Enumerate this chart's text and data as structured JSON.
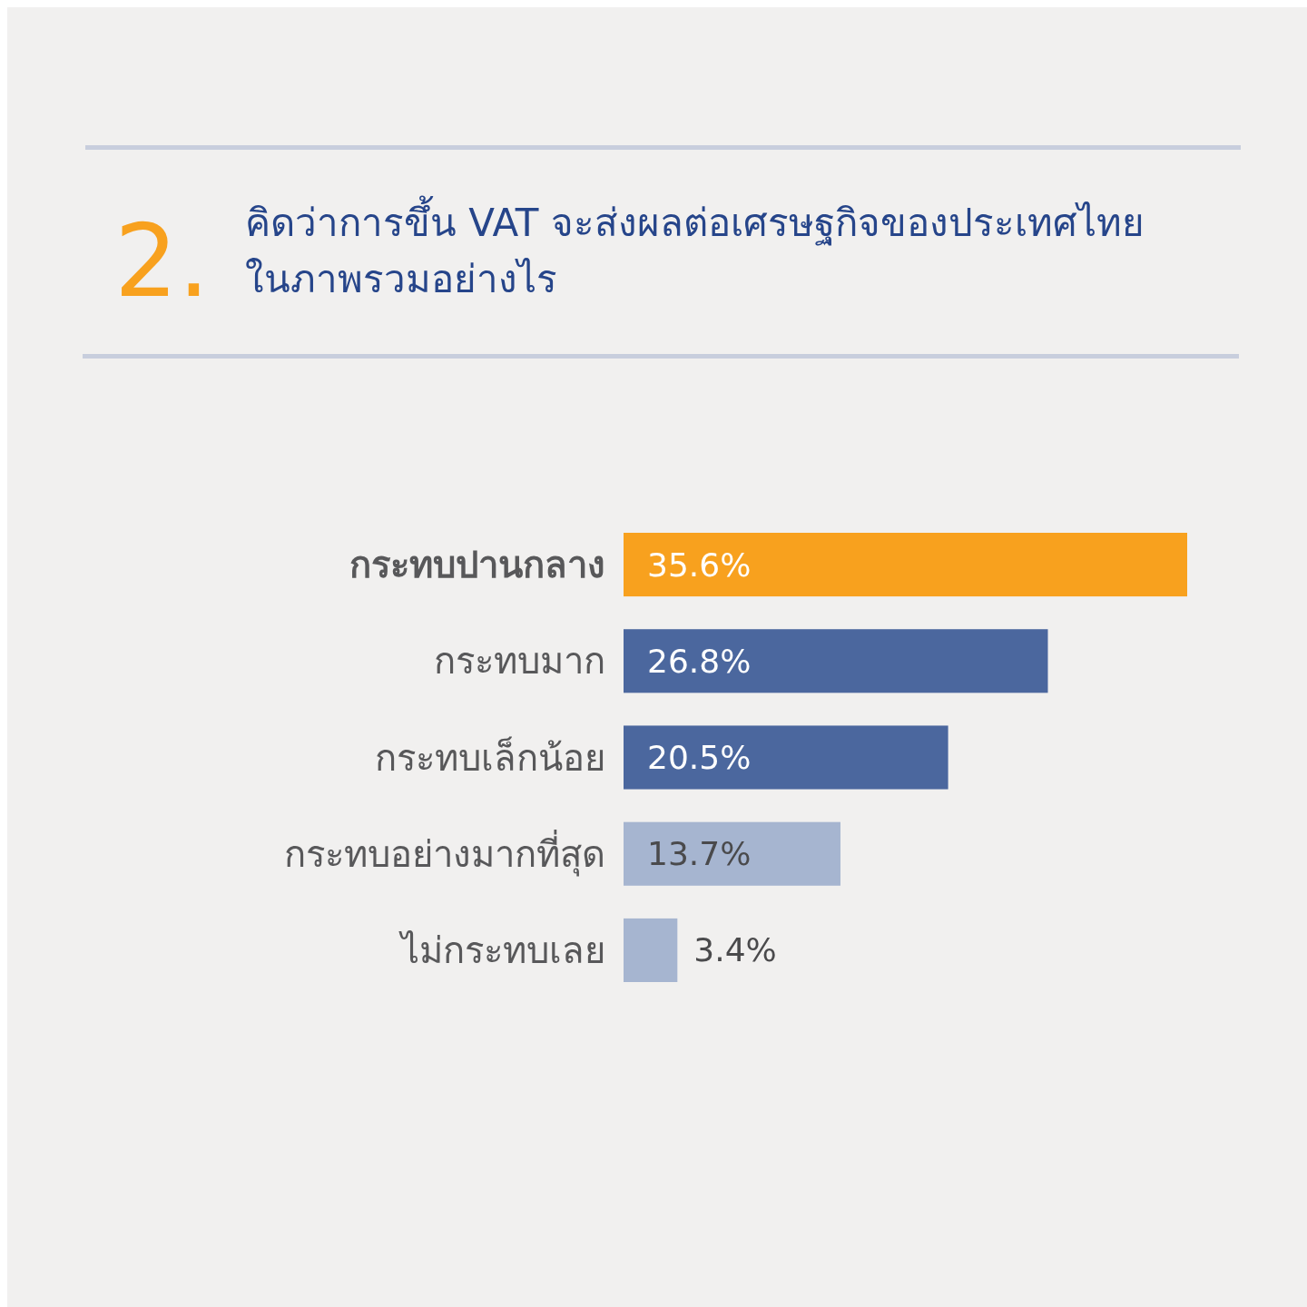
{
  "chart_data": {
    "type": "bar",
    "orientation": "horizontal",
    "title": "คิดว่าการขึ้น VAT จะส่งผลต่อเศรษฐกิจของประเทศไทย\nในภาพรวมอย่างไร",
    "annotations": [
      "2."
    ],
    "categories": [
      "กระทบปานกลาง",
      "กระทบมาก",
      "กระทบเล็กน้อย",
      "กระทบอย่างมากที่สุด",
      "ไม่กระทบเลย"
    ],
    "values": [
      35.6,
      26.8,
      20.5,
      13.7,
      3.4
    ],
    "colors": [
      "#f8a11e",
      "#4b679e",
      "#4b679e",
      "#a6b5d0",
      "#a6b5d0"
    ],
    "value_labels": [
      "35.6%",
      "26.8%",
      "20.5%",
      "13.7%",
      "3.4%"
    ]
  }
}
